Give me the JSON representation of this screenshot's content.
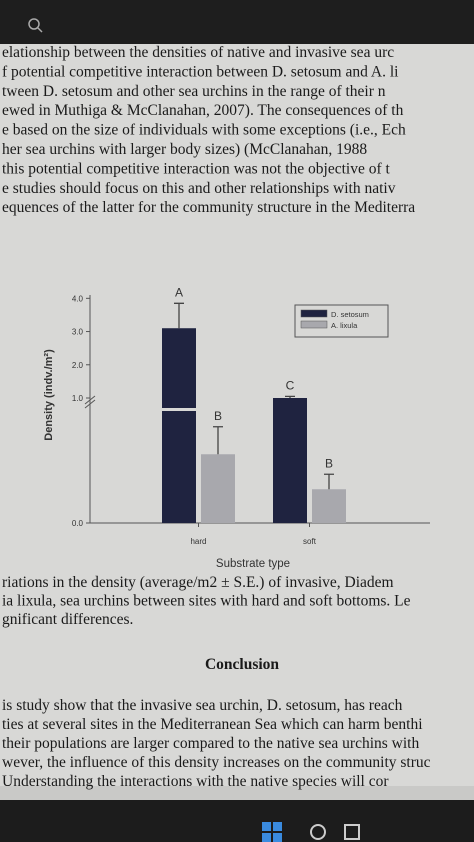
{
  "text_top": [
    "elationship between the densities of native and invasive sea urc",
    "f potential competitive interaction between D. setosum and A. li",
    "tween D. setosum and other sea urchins in the range of their n",
    "ewed in Muthiga & McClanahan, 2007). The consequences of th",
    "e based on the size of individuals with some exceptions (i.e., Ech",
    "her sea urchins with larger body sizes) (McClanahan, 1988",
    "this potential competitive interaction was not the objective of t",
    "e studies should focus on this and other relationships with nativ",
    "equences of the latter for the community structure in the Mediterra"
  ],
  "chart_data": {
    "type": "bar",
    "xlabel": "Substrate type",
    "ylabel": "Density (indv./m²)",
    "categories": [
      "hard",
      "soft"
    ],
    "series": [
      {
        "name": "D. setosum",
        "color": "#1f2340",
        "values": [
          3.1,
          1.0
        ],
        "errors": [
          0.75,
          0.05
        ],
        "letters": [
          "A",
          "C"
        ]
      },
      {
        "name": "A. lixula",
        "color": "#a8a8ad",
        "values": [
          0.55,
          0.27
        ],
        "errors": [
          0.22,
          0.12
        ],
        "letters": [
          "B",
          "B"
        ]
      }
    ],
    "ylim": [
      0,
      4.1
    ],
    "axis_break": 1.0,
    "yticks": [
      {
        "value": 0,
        "label": "0.0"
      },
      {
        "value": 1,
        "label": "1.0"
      },
      {
        "value": 2,
        "label": "2.0"
      },
      {
        "value": 3,
        "label": "3.0"
      },
      {
        "value": 4,
        "label": "4.0"
      }
    ],
    "legend": "upper right"
  },
  "caption": [
    "riations in the density (average/m2 ± S.E.) of invasive, Diadem",
    "ia lixula, sea urchins between sites with hard and soft bottoms. Le",
    "gnificant differences."
  ],
  "heading": "Conclusion",
  "text_bottom": [
    "is study show that the invasive sea urchin, D. setosum, has reach",
    "ties at several sites in the Mediterranean Sea which can harm benthi",
    " their populations are larger compared to the native sea urchins with",
    "wever, the influence of this density increases on the community struc",
    "Understanding the interactions with the native species will cor"
  ]
}
